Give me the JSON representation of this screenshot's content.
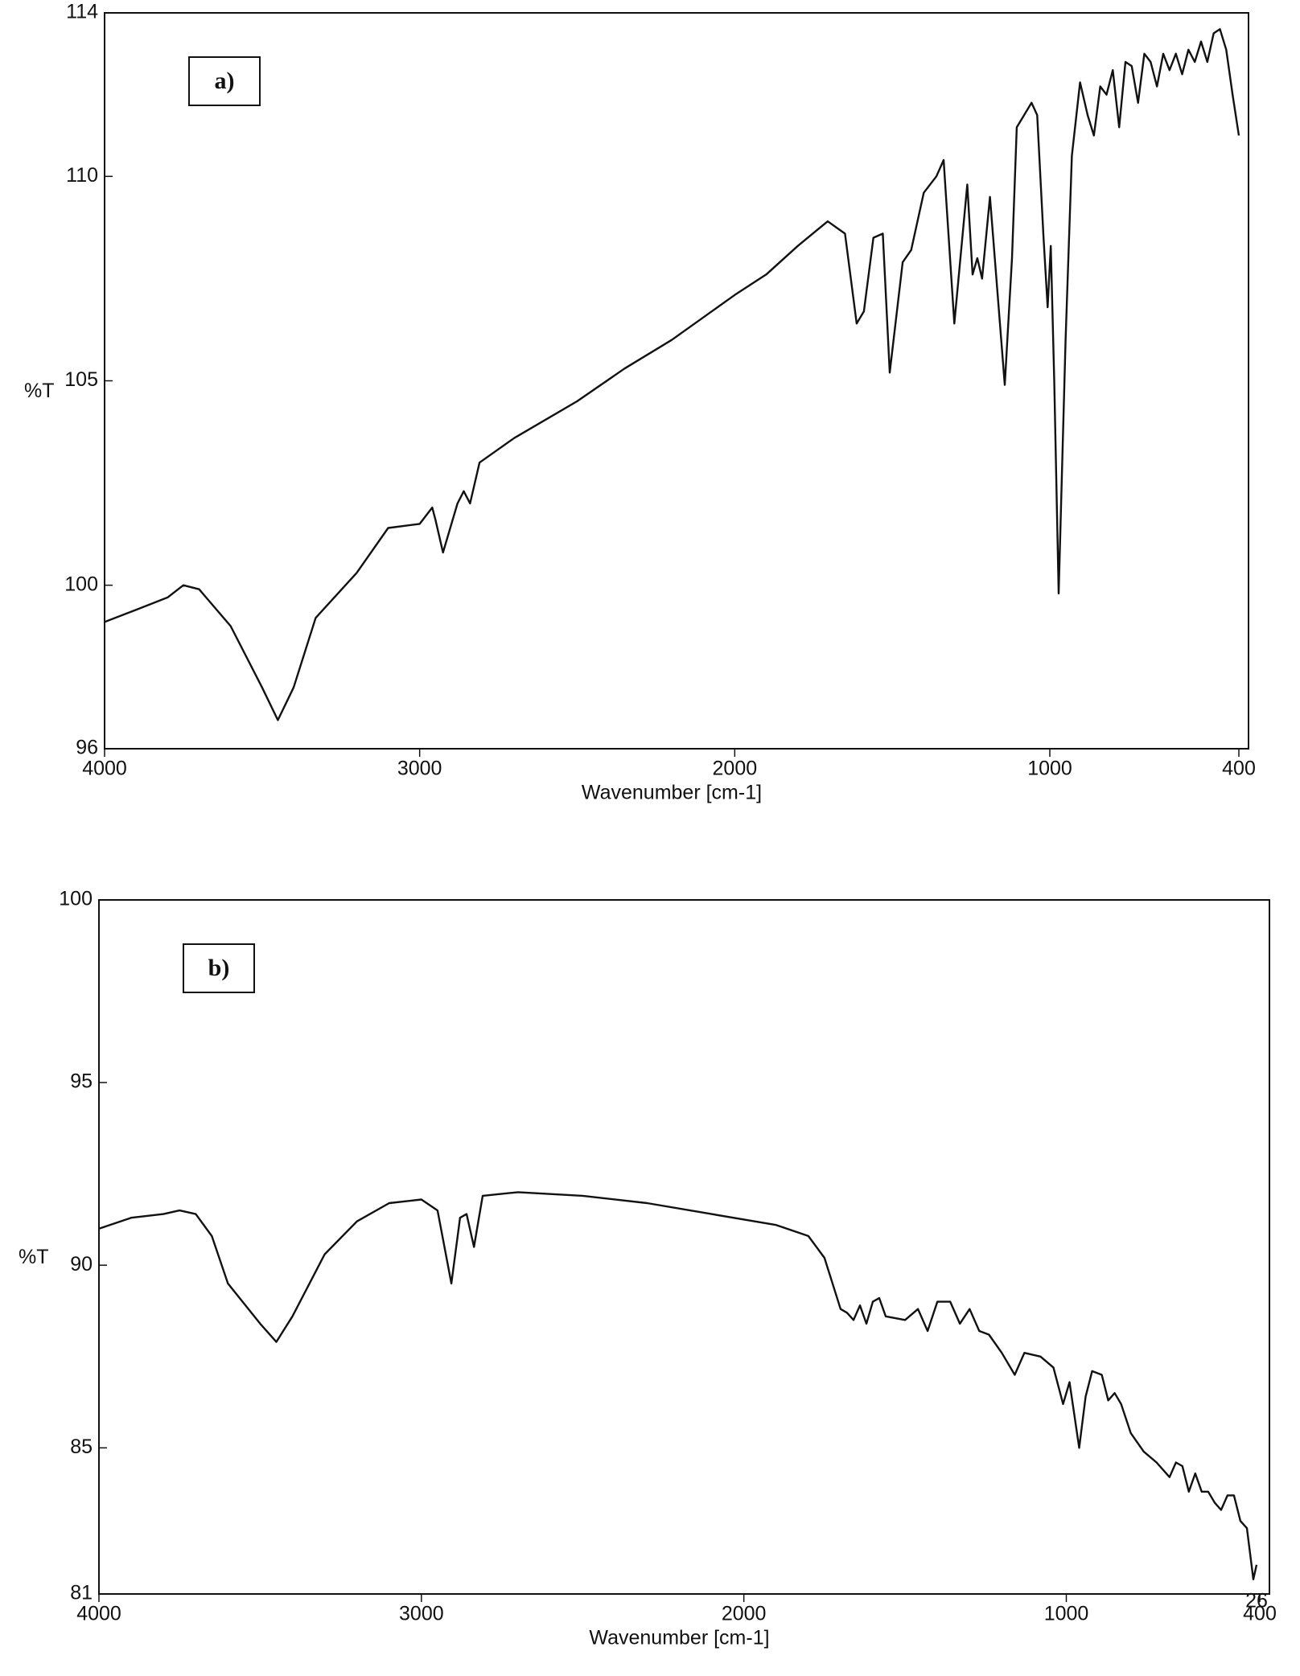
{
  "chart_data": [
    {
      "type": "line",
      "panel_label": "a)",
      "y_label": "%T",
      "x_label": "Wavenumber [cm-1]",
      "xlim": [
        4000,
        400
      ],
      "ylim": [
        96,
        114
      ],
      "xticks": [
        4000,
        3000,
        2000,
        1000,
        400
      ],
      "yticks": [
        96,
        100,
        105,
        110,
        114
      ],
      "x": [
        4000,
        3900,
        3800,
        3750,
        3700,
        3600,
        3500,
        3450,
        3400,
        3330,
        3200,
        3100,
        3000,
        2960,
        2950,
        2926,
        2880,
        2860,
        2840,
        2810,
        2700,
        2500,
        2350,
        2200,
        2000,
        1900,
        1800,
        1705,
        1650,
        1613,
        1590,
        1560,
        1530,
        1508,
        1467,
        1440,
        1400,
        1360,
        1337,
        1303,
        1262,
        1245,
        1230,
        1215,
        1190,
        1143,
        1120,
        1105,
        1058,
        1040,
        1020,
        1007,
        997,
        986,
        972,
        950,
        930,
        904,
        880,
        860,
        840,
        820,
        800,
        780,
        760,
        740,
        720,
        700,
        680,
        660,
        640,
        620,
        600,
        580,
        560,
        540,
        520,
        500,
        480,
        460,
        440,
        420,
        400
      ],
      "series": [
        {
          "color": "#111111",
          "values": [
            99.1,
            99.4,
            99.7,
            100.0,
            99.9,
            99.0,
            97.5,
            96.7,
            97.5,
            99.2,
            100.3,
            101.4,
            101.5,
            101.9,
            101.6,
            100.8,
            102.0,
            102.3,
            102.0,
            103.0,
            103.6,
            104.5,
            105.3,
            106.0,
            107.1,
            107.6,
            108.3,
            108.9,
            108.6,
            106.4,
            106.7,
            108.5,
            108.6,
            105.2,
            107.9,
            108.2,
            109.6,
            110.0,
            110.4,
            106.4,
            109.8,
            107.6,
            108.0,
            107.5,
            109.5,
            104.9,
            108.0,
            111.2,
            111.8,
            111.5,
            108.5,
            106.8,
            108.3,
            105.0,
            99.8,
            106.0,
            110.5,
            112.3,
            111.5,
            111.0,
            112.2,
            112.0,
            112.6,
            111.2,
            112.8,
            112.7,
            111.8,
            113.0,
            112.8,
            112.2,
            113.0,
            112.6,
            113.0,
            112.5,
            113.1,
            112.8,
            113.3,
            112.8,
            113.5,
            113.6,
            113.1,
            112.0,
            111.0
          ]
        }
      ]
    },
    {
      "type": "line",
      "panel_label": "b)",
      "y_label": "%T",
      "x_label": "Wavenumber [cm-1]",
      "annotation": "26",
      "xlim": [
        4000,
        400
      ],
      "ylim": [
        81,
        100
      ],
      "xticks": [
        4000,
        3000,
        2000,
        1000,
        400
      ],
      "yticks": [
        81,
        85,
        90,
        95,
        100
      ],
      "x": [
        4000,
        3900,
        3800,
        3750,
        3700,
        3650,
        3600,
        3500,
        3450,
        3400,
        3300,
        3200,
        3100,
        3000,
        2950,
        2907,
        2880,
        2860,
        2837,
        2810,
        2700,
        2500,
        2300,
        2100,
        1900,
        1800,
        1750,
        1700,
        1680,
        1660,
        1640,
        1620,
        1600,
        1580,
        1560,
        1500,
        1460,
        1430,
        1400,
        1360,
        1330,
        1300,
        1270,
        1240,
        1200,
        1160,
        1130,
        1080,
        1040,
        1010,
        990,
        960,
        940,
        920,
        890,
        870,
        850,
        830,
        800,
        760,
        720,
        680,
        660,
        640,
        620,
        600,
        580,
        560,
        540,
        520,
        500,
        480,
        460,
        440,
        420,
        410
      ],
      "series": [
        {
          "color": "#111111",
          "values": [
            91.0,
            91.3,
            91.4,
            91.5,
            91.4,
            90.8,
            89.5,
            88.4,
            87.9,
            88.6,
            90.3,
            91.2,
            91.7,
            91.8,
            91.5,
            89.5,
            91.3,
            91.4,
            90.5,
            91.9,
            92.0,
            91.9,
            91.7,
            91.4,
            91.1,
            90.8,
            90.2,
            88.8,
            88.7,
            88.5,
            88.9,
            88.4,
            89.0,
            89.1,
            88.6,
            88.5,
            88.8,
            88.2,
            89.0,
            89.0,
            88.4,
            88.8,
            88.2,
            88.1,
            87.6,
            87.0,
            87.6,
            87.5,
            87.2,
            86.2,
            86.8,
            85.0,
            86.4,
            87.1,
            87.0,
            86.3,
            86.5,
            86.2,
            85.4,
            84.9,
            84.6,
            84.2,
            84.6,
            84.5,
            83.8,
            84.3,
            83.8,
            83.8,
            83.5,
            83.3,
            83.7,
            83.7,
            83.0,
            82.8,
            81.4,
            81.8
          ]
        }
      ]
    }
  ]
}
